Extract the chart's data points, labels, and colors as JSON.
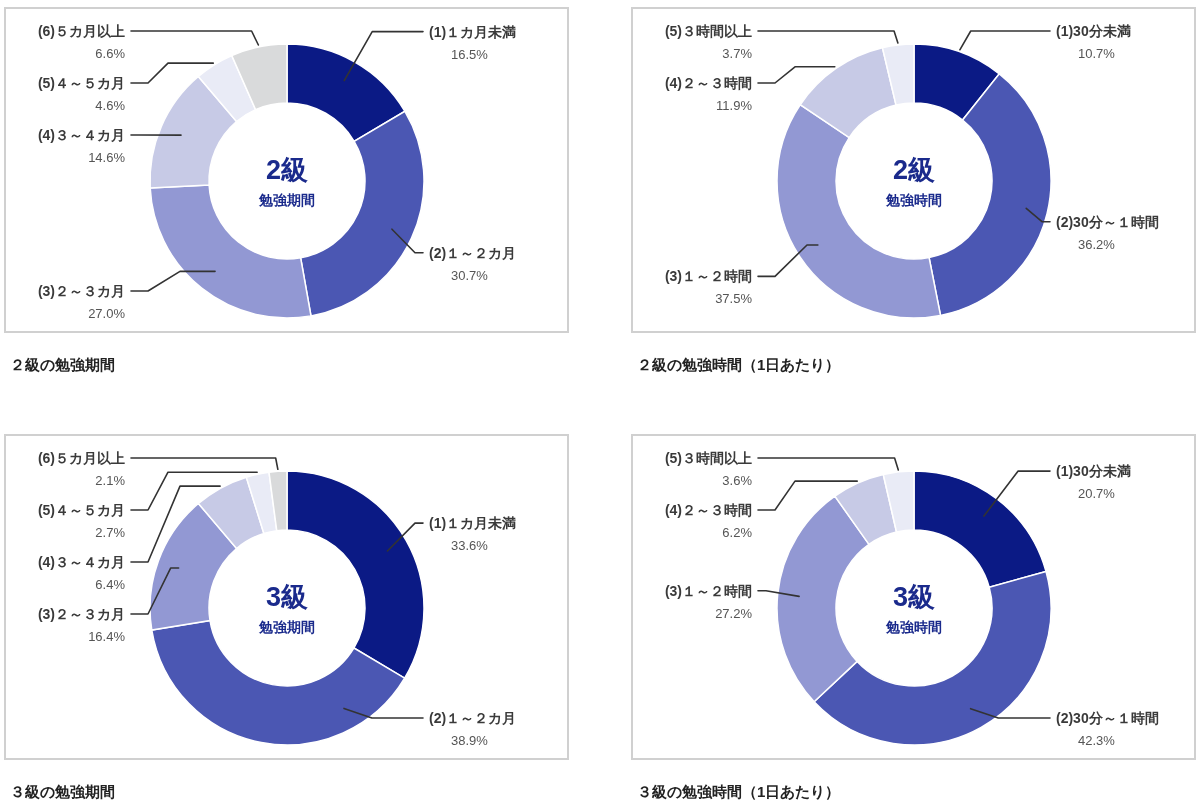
{
  "chart_data": [
    {
      "type": "donut",
      "title": "２級の勉強期間",
      "annotations": [
        "2級",
        "勉強期間"
      ],
      "categories": [
        "(1)１カ月未満",
        "(2)１～２カ月",
        "(3)２～３カ月",
        "(4)３～４カ月",
        "(5)４～５カ月",
        "(6)５カ月以上"
      ],
      "values": [
        16.5,
        30.7,
        27.0,
        14.6,
        4.6,
        6.6
      ],
      "value_labels": [
        "16.5%",
        "30.7%",
        "27.0%",
        "14.6%",
        "4.6%",
        "6.6%"
      ],
      "colors": [
        "#0b1a85",
        "#4b57b3",
        "#9298d3",
        "#c7cae6",
        "#e9ebf6",
        "#d9dadb"
      ]
    },
    {
      "type": "donut",
      "title": "２級の勉強時間（1日あたり）",
      "annotations": [
        "2級",
        "勉強時間"
      ],
      "categories": [
        "(1)30分未満",
        "(2)30分～１時間",
        "(3)１～２時間",
        "(4)２～３時間",
        "(5)３時間以上"
      ],
      "values": [
        10.7,
        36.2,
        37.5,
        11.9,
        3.7
      ],
      "value_labels": [
        "10.7%",
        "36.2%",
        "37.5%",
        "11.9%",
        "3.7%"
      ],
      "colors": [
        "#0b1a85",
        "#4b57b3",
        "#9298d3",
        "#c7cae6",
        "#e9ebf6"
      ]
    },
    {
      "type": "donut",
      "title": "３級の勉強期間",
      "annotations": [
        "3級",
        "勉強期間"
      ],
      "categories": [
        "(1)１カ月未満",
        "(2)１～２カ月",
        "(3)２～３カ月",
        "(4)３～４カ月",
        "(5)４～５カ月",
        "(6)５カ月以上"
      ],
      "values": [
        33.6,
        38.9,
        16.4,
        6.4,
        2.7,
        2.1
      ],
      "value_labels": [
        "33.6%",
        "38.9%",
        "16.4%",
        "6.4%",
        "2.7%",
        "2.1%"
      ],
      "colors": [
        "#0b1a85",
        "#4b57b3",
        "#9298d3",
        "#c7cae6",
        "#e9ebf6",
        "#d9dadb"
      ]
    },
    {
      "type": "donut",
      "title": "３級の勉強時間（1日あたり）",
      "annotations": [
        "3級",
        "勉強時間"
      ],
      "categories": [
        "(1)30分未満",
        "(2)30分～１時間",
        "(3)１～２時間",
        "(4)２～３時間",
        "(5)３時間以上"
      ],
      "values": [
        20.7,
        42.3,
        27.2,
        6.2,
        3.6
      ],
      "value_labels": [
        "20.7%",
        "42.3%",
        "27.2%",
        "6.2%",
        "3.6%"
      ],
      "colors": [
        "#0b1a85",
        "#4b57b3",
        "#9298d3",
        "#c7cae6",
        "#e9ebf6"
      ]
    }
  ]
}
